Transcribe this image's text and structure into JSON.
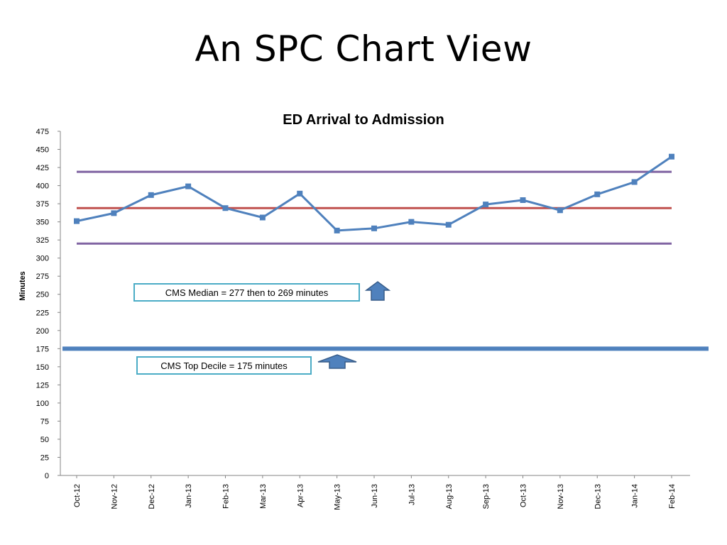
{
  "slide": {
    "title": "An SPC Chart View"
  },
  "annotations": {
    "median_text": "CMS Median = 277 then to 269 minutes",
    "top_decile_text": "CMS Top Decile = 175 minutes",
    "arrow_color": "#4f81bd"
  },
  "chart_data": {
    "type": "line",
    "title": "ED Arrival to Admission",
    "xlabel": "",
    "ylabel": "Minutes",
    "ylim": [
      0,
      475
    ],
    "yticks": [
      0,
      25,
      50,
      75,
      100,
      125,
      150,
      175,
      200,
      225,
      250,
      275,
      300,
      325,
      350,
      375,
      400,
      425,
      450,
      475
    ],
    "categories": [
      "Oct-12",
      "Nov-12",
      "Dec-12",
      "Jan-13",
      "Feb-13",
      "Mar-13",
      "Apr-13",
      "May-13",
      "Jun-13",
      "Jul-13",
      "Aug-13",
      "Sep-13",
      "Oct-13",
      "Nov-13",
      "Dec-13",
      "Jan-14",
      "Feb-14"
    ],
    "series": [
      {
        "values": [
          351,
          362,
          387,
          399,
          369,
          356,
          389,
          338,
          341,
          350,
          346,
          374,
          380,
          366,
          388,
          405,
          440
        ],
        "color": "#4f81bd"
      }
    ],
    "reference_lines": [
      {
        "value": 419,
        "color": "#8064a2"
      },
      {
        "value": 369,
        "color": "#c0504d"
      },
      {
        "value": 320,
        "color": "#8064a2"
      },
      {
        "value": 175,
        "color": "#4f81bd"
      }
    ],
    "grid": false,
    "legend": "none"
  }
}
